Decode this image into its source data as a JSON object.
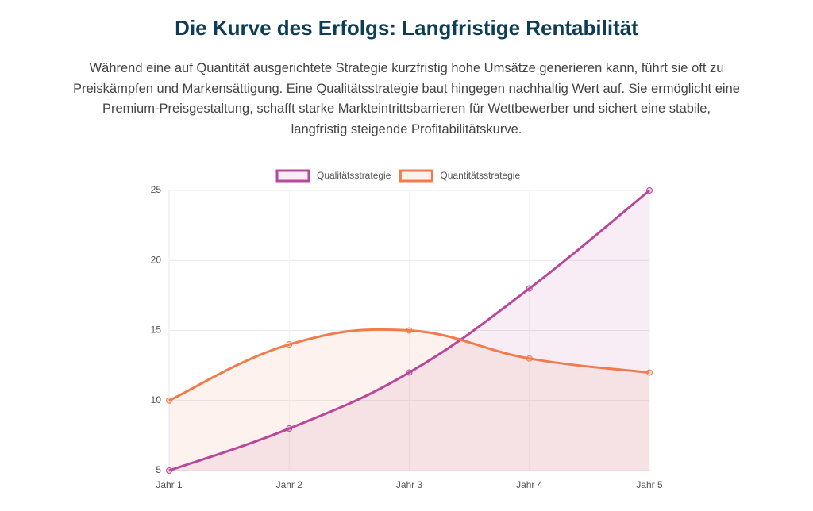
{
  "chart_data": {
    "type": "line",
    "title": "Die Kurve des Erfolgs: Langfristige Rentabilität",
    "subtitle": "Während eine auf Quantität ausgerichtete Strategie kurzfristig hohe Umsätze generieren kann, führt sie oft zu Preiskämpfen und Markensättigung. Eine Qualitätsstrategie baut hingegen nachhaltig Wert auf. Sie ermöglicht eine Premium-Preisgestaltung, schafft starke Markteintrittsbarrieren für Wettbewerber und sichert eine stabile, langfristig steigende Profitabilitätskurve.",
    "categories": [
      "Jahr 1",
      "Jahr 2",
      "Jahr 3",
      "Jahr 4",
      "Jahr 5"
    ],
    "series": [
      {
        "name": "Qualitätsstrategie",
        "color": "#b8489b",
        "values": [
          5,
          8,
          12,
          18,
          25
        ]
      },
      {
        "name": "Quantitätsstrategie",
        "color": "#f07b4b",
        "values": [
          10,
          14,
          15,
          13,
          12
        ]
      }
    ],
    "ylim": [
      5,
      25
    ],
    "yticks": [
      5,
      10,
      15,
      20,
      25
    ],
    "grid": true,
    "fill": true,
    "legend": "top"
  }
}
